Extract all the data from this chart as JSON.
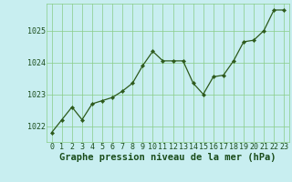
{
  "x": [
    0,
    1,
    2,
    3,
    4,
    5,
    6,
    7,
    8,
    9,
    10,
    11,
    12,
    13,
    14,
    15,
    16,
    17,
    18,
    19,
    20,
    21,
    22,
    23
  ],
  "y": [
    1021.8,
    1022.2,
    1022.6,
    1022.2,
    1022.7,
    1022.8,
    1022.9,
    1023.1,
    1023.35,
    1023.9,
    1024.35,
    1024.05,
    1024.05,
    1024.05,
    1023.35,
    1023.0,
    1023.55,
    1023.6,
    1024.05,
    1024.65,
    1024.7,
    1025.0,
    1025.65,
    1025.65
  ],
  "line_color": "#2d5a1b",
  "marker": "D",
  "marker_size": 2.2,
  "bg_color": "#c8eef0",
  "grid_color": "#88cc88",
  "xlabel": "Graphe pression niveau de la mer (hPa)",
  "xlabel_color": "#1a4c1a",
  "xlabel_fontsize": 7.5,
  "tick_color": "#1a4c1a",
  "tick_fontsize": 6.0,
  "ylim": [
    1021.5,
    1025.85
  ],
  "yticks": [
    1022,
    1023,
    1024,
    1025
  ],
  "xlim": [
    -0.5,
    23.5
  ],
  "figsize": [
    3.2,
    2.0
  ],
  "dpi": 100
}
